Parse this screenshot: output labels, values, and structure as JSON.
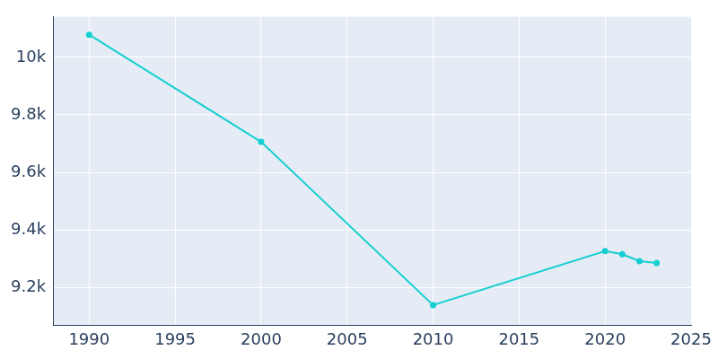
{
  "chart_data": {
    "type": "line",
    "x": [
      1990,
      2000,
      2010,
      2020,
      2021,
      2022,
      2023
    ],
    "values": [
      10079,
      9706,
      9138,
      9326,
      9315,
      9291,
      9285
    ],
    "color": "#17cfd1",
    "marker": "circle",
    "xlim": [
      1987.9,
      2025
    ],
    "xticks": [
      1990,
      1995,
      2000,
      2005,
      2010,
      2015,
      2020,
      2025
    ],
    "ylim": [
      9068,
      10141
    ],
    "yticks": [
      {
        "value": 9200,
        "label": "9.2k"
      },
      {
        "value": 9400,
        "label": "9.4k"
      },
      {
        "value": 9600,
        "label": "9.6k"
      },
      {
        "value": 9800,
        "label": "9.8k"
      },
      {
        "value": 10000,
        "label": "10k"
      }
    ],
    "grid": true
  }
}
